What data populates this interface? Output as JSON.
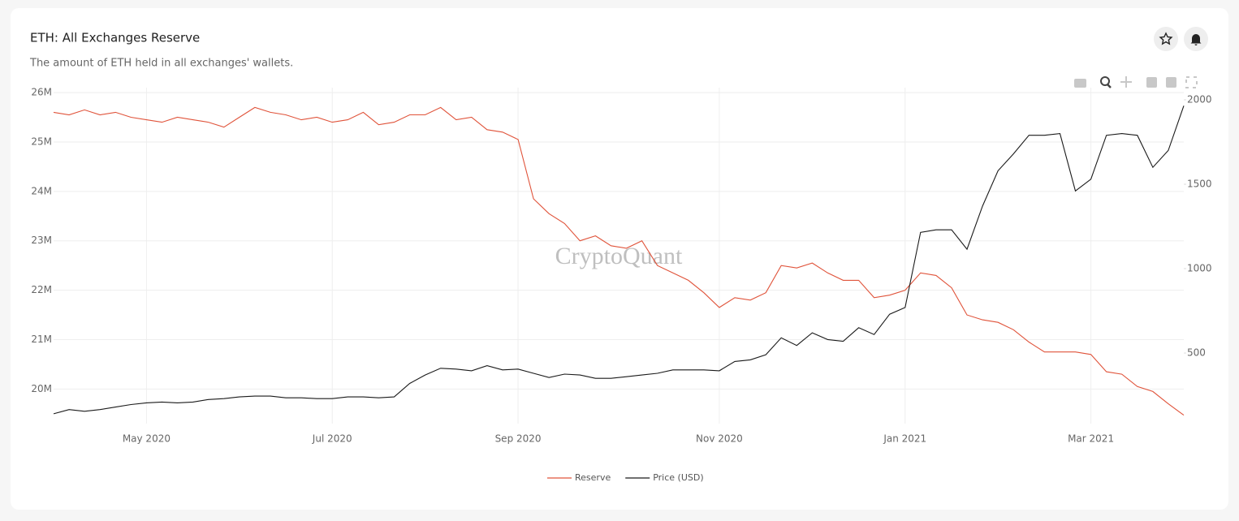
{
  "chart_data": {
    "type": "line",
    "title": "ETH: All Exchanges Reserve",
    "subtitle": "The amount of ETH held in all exchanges' wallets.",
    "watermark": "CryptoQuant",
    "categories": [
      null,
      null,
      null,
      null,
      null,
      null,
      "May 2020",
      null,
      null,
      null,
      null,
      null,
      null,
      null,
      null,
      null,
      null,
      null,
      "Jul 2020",
      null,
      null,
      null,
      null,
      null,
      null,
      null,
      null,
      null,
      null,
      null,
      "Sep 2020",
      null,
      null,
      null,
      null,
      null,
      null,
      null,
      null,
      null,
      null,
      null,
      null,
      "Nov 2020",
      null,
      null,
      null,
      null,
      null,
      null,
      null,
      null,
      null,
      null,
      null,
      "Jan 2021",
      null,
      null,
      null,
      null,
      null,
      null,
      null,
      null,
      null,
      null,
      null,
      "Mar 2021",
      null,
      null,
      null,
      null,
      null,
      null
    ],
    "series": [
      {
        "name": "Reserve",
        "color": "#e0533a",
        "axis": "y",
        "values": [
          25600000,
          25550000,
          25650000,
          25550000,
          25600000,
          25500000,
          25450000,
          25400000,
          25500000,
          25450000,
          25400000,
          25300000,
          25500000,
          25700000,
          25600000,
          25550000,
          25450000,
          25500000,
          25400000,
          25450000,
          25600000,
          25350000,
          25400000,
          25550000,
          25550000,
          25700000,
          25450000,
          25500000,
          25250000,
          25200000,
          25050000,
          23850000,
          23550000,
          23350000,
          23000000,
          23100000,
          22900000,
          22850000,
          23000000,
          22500000,
          22350000,
          22200000,
          21950000,
          21650000,
          21850000,
          21800000,
          21950000,
          22500000,
          22450000,
          22550000,
          22350000,
          22200000,
          22200000,
          21850000,
          21900000,
          22000000,
          22350000,
          22300000,
          22050000,
          21500000,
          21400000,
          21350000,
          21200000,
          20950000,
          20750000,
          20750000,
          20750000,
          20700000,
          20350000,
          20300000,
          20050000,
          19950000,
          19700000,
          19470000
        ]
      },
      {
        "name": "Price (USD)",
        "color": "#1a1a1a",
        "axis": "y2",
        "values": [
          140,
          165,
          155,
          165,
          180,
          195,
          205,
          210,
          205,
          210,
          225,
          230,
          240,
          245,
          245,
          235,
          235,
          230,
          230,
          240,
          240,
          235,
          240,
          320,
          370,
          410,
          405,
          395,
          425,
          400,
          405,
          380,
          355,
          375,
          370,
          350,
          350,
          360,
          370,
          380,
          400,
          400,
          400,
          395,
          450,
          460,
          490,
          590,
          545,
          620,
          580,
          570,
          650,
          610,
          730,
          770,
          1215,
          1230,
          1230,
          1115,
          1370,
          1580,
          1680,
          1790,
          1790,
          1800,
          1460,
          1530,
          1790,
          1800,
          1790,
          1600,
          1700,
          1965
        ]
      }
    ],
    "ylim": [
      19300000,
      26100000
    ],
    "yticks": [
      {
        "value": 20000000,
        "label": "20M"
      },
      {
        "value": 21000000,
        "label": "21M"
      },
      {
        "value": 22000000,
        "label": "22M"
      },
      {
        "value": 23000000,
        "label": "23M"
      },
      {
        "value": 24000000,
        "label": "24M"
      },
      {
        "value": 25000000,
        "label": "25M"
      },
      {
        "value": 26000000,
        "label": "26M"
      }
    ],
    "y2lim": [
      82,
      2072
    ],
    "y2ticks": [
      500,
      1000,
      1500,
      2000
    ],
    "grid": true
  }
}
